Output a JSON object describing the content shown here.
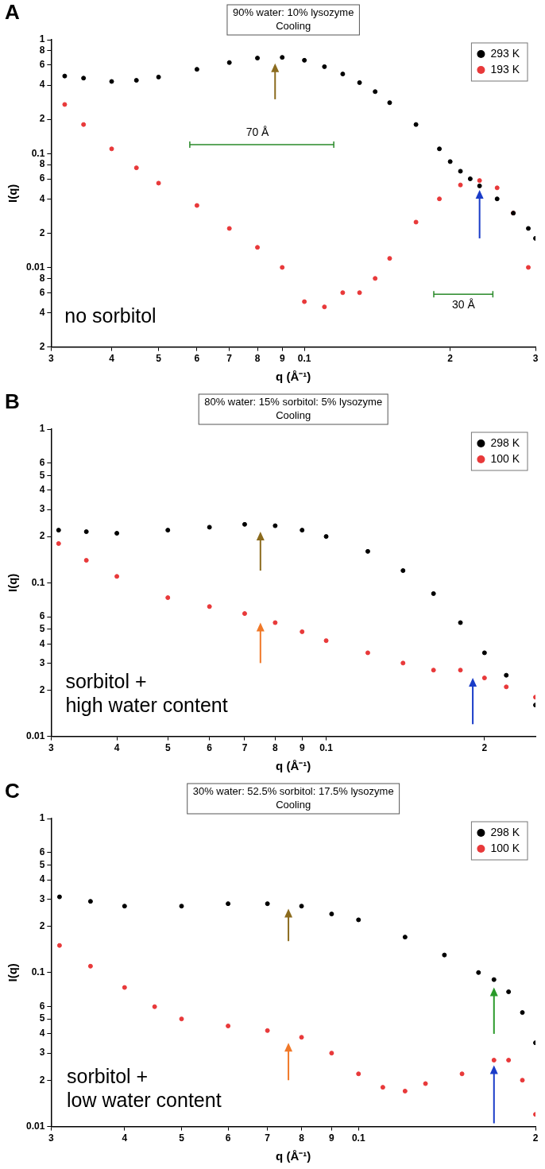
{
  "chart_data": [
    {
      "type": "scatter",
      "panel": "A",
      "title": "90% water: 10% lysozyme",
      "subtitle": "Cooling",
      "x_label": "q (Å⁻¹)",
      "y_label": "I(q)",
      "log": true,
      "grid": false,
      "legend": "upper right",
      "marker": "circle",
      "xlim": [
        0.03,
        0.3
      ],
      "ylim": [
        0.002,
        1
      ],
      "xticks": [
        {
          "value": 0.03,
          "label": "3"
        },
        {
          "value": 0.04,
          "label": "4"
        },
        {
          "value": 0.05,
          "label": "5"
        },
        {
          "value": 0.06,
          "label": "6"
        },
        {
          "value": 0.07,
          "label": "7"
        },
        {
          "value": 0.08,
          "label": "8"
        },
        {
          "value": 0.09,
          "label": "9"
        },
        0.1,
        {
          "value": 0.2,
          "label": "2"
        },
        {
          "value": 0.3,
          "label": "3"
        }
      ],
      "yticks": [
        {
          "value": 0.002,
          "label": "2"
        },
        {
          "value": 0.004,
          "label": "4"
        },
        {
          "value": 0.006,
          "label": "6"
        },
        {
          "value": 0.008,
          "label": "8"
        },
        0.01,
        {
          "value": 0.02,
          "label": "2"
        },
        {
          "value": 0.04,
          "label": "4"
        },
        {
          "value": 0.06,
          "label": "6"
        },
        {
          "value": 0.08,
          "label": "8"
        },
        0.1,
        {
          "value": 0.2,
          "label": "2"
        },
        {
          "value": 0.4,
          "label": "4"
        },
        {
          "value": 0.6,
          "label": "6"
        },
        {
          "value": 0.8,
          "label": "8"
        },
        1
      ],
      "series": [
        {
          "name": "293 K",
          "color": "#000000",
          "x": [
            0.032,
            0.035,
            0.04,
            0.045,
            0.05,
            0.06,
            0.07,
            0.08,
            0.09,
            0.1,
            0.11,
            0.12,
            0.13,
            0.14,
            0.15,
            0.17,
            0.19,
            0.2,
            0.21,
            0.22,
            0.23,
            0.25,
            0.27,
            0.29,
            0.3
          ],
          "values": [
            0.48,
            0.46,
            0.43,
            0.44,
            0.47,
            0.55,
            0.63,
            0.69,
            0.7,
            0.66,
            0.58,
            0.5,
            0.42,
            0.35,
            0.28,
            0.18,
            0.11,
            0.085,
            0.07,
            0.06,
            0.052,
            0.04,
            0.03,
            0.022,
            0.018
          ]
        },
        {
          "name": "193 K",
          "color": "#e8393a",
          "x": [
            0.032,
            0.035,
            0.04,
            0.045,
            0.05,
            0.06,
            0.07,
            0.08,
            0.09,
            0.1,
            0.11,
            0.12,
            0.13,
            0.14,
            0.15,
            0.17,
            0.19,
            0.21,
            0.23,
            0.25,
            0.27,
            0.29
          ],
          "values": [
            0.27,
            0.18,
            0.11,
            0.075,
            0.055,
            0.035,
            0.022,
            0.015,
            0.01,
            0.005,
            0.0045,
            0.006,
            0.006,
            0.008,
            0.012,
            0.025,
            0.04,
            0.053,
            0.058,
            0.05,
            0.03,
            0.01
          ]
        }
      ],
      "arrows": [
        {
          "x": 0.087,
          "from": 0.3,
          "to": 0.62,
          "color": "#8b6b1e"
        },
        {
          "x": 0.23,
          "from": 0.018,
          "to": 0.048,
          "color": "#1a3cc8"
        }
      ],
      "annotations": [
        {
          "text": [
            "no sorbitol"
          ],
          "x": 0.0315,
          "y": 0.0045
        },
        {
          "text": [
            "70 Å"
          ],
          "x": 0.08,
          "y": 0.17,
          "span": [
            0.058,
            0.115
          ],
          "span_y": 0.12
        },
        {
          "text": [
            "30 Å"
          ],
          "x": 0.213,
          "y": 0.0052,
          "span": [
            0.185,
            0.245
          ],
          "span_y": 0.0058
        }
      ]
    },
    {
      "type": "scatter",
      "panel": "B",
      "title": "80% water: 15% sorbitol: 5% lysozyme",
      "subtitle": "Cooling",
      "x_label": "q (Å⁻¹)",
      "y_label": "I(q)",
      "log": true,
      "grid": false,
      "legend": "upper right",
      "marker": "circle",
      "xlim": [
        0.03,
        0.25
      ],
      "ylim": [
        0.01,
        1
      ],
      "xticks": [
        {
          "value": 0.03,
          "label": "3"
        },
        {
          "value": 0.04,
          "label": "4"
        },
        {
          "value": 0.05,
          "label": "5"
        },
        {
          "value": 0.06,
          "label": "6"
        },
        {
          "value": 0.07,
          "label": "7"
        },
        {
          "value": 0.08,
          "label": "8"
        },
        {
          "value": 0.09,
          "label": "9"
        },
        0.1,
        {
          "value": 0.2,
          "label": "2"
        }
      ],
      "yticks": [
        0.01,
        {
          "value": 0.02,
          "label": "2"
        },
        {
          "value": 0.03,
          "label": "3"
        },
        {
          "value": 0.04,
          "label": "4"
        },
        {
          "value": 0.05,
          "label": "5"
        },
        {
          "value": 0.06,
          "label": "6"
        },
        0.1,
        {
          "value": 0.2,
          "label": "2"
        },
        {
          "value": 0.3,
          "label": "3"
        },
        {
          "value": 0.4,
          "label": "4"
        },
        {
          "value": 0.5,
          "label": "5"
        },
        {
          "value": 0.6,
          "label": "6"
        },
        1
      ],
      "series": [
        {
          "name": "298 K",
          "color": "#000000",
          "x": [
            0.031,
            0.035,
            0.04,
            0.05,
            0.06,
            0.07,
            0.08,
            0.09,
            0.1,
            0.12,
            0.14,
            0.16,
            0.18,
            0.2,
            0.22,
            0.25
          ],
          "values": [
            0.22,
            0.215,
            0.21,
            0.22,
            0.23,
            0.24,
            0.235,
            0.22,
            0.2,
            0.16,
            0.12,
            0.085,
            0.055,
            0.035,
            0.025,
            0.016
          ]
        },
        {
          "name": "100 K",
          "color": "#e8393a",
          "x": [
            0.031,
            0.035,
            0.04,
            0.05,
            0.06,
            0.07,
            0.08,
            0.09,
            0.1,
            0.12,
            0.14,
            0.16,
            0.18,
            0.2,
            0.22,
            0.25
          ],
          "values": [
            0.18,
            0.14,
            0.11,
            0.08,
            0.07,
            0.063,
            0.055,
            0.048,
            0.042,
            0.035,
            0.03,
            0.027,
            0.027,
            0.024,
            0.021,
            0.018
          ]
        }
      ],
      "arrows": [
        {
          "x": 0.075,
          "from": 0.12,
          "to": 0.215,
          "color": "#8b6b1e"
        },
        {
          "x": 0.075,
          "from": 0.03,
          "to": 0.055,
          "color": "#f07828"
        },
        {
          "x": 0.19,
          "from": 0.012,
          "to": 0.024,
          "color": "#1a3cc8"
        }
      ],
      "annotations": [
        {
          "text": [
            "sorbitol +",
            "high water content"
          ],
          "x": 0.0315,
          "y": 0.026
        }
      ]
    },
    {
      "type": "scatter",
      "panel": "C",
      "title": "30% water: 52.5% sorbitol: 17.5% lysozyme",
      "subtitle": "Cooling",
      "x_label": "q (Å⁻¹)",
      "y_label": "I(q)",
      "log": true,
      "grid": false,
      "legend": "upper right",
      "marker": "circle",
      "xlim": [
        0.03,
        0.2
      ],
      "ylim": [
        0.01,
        1
      ],
      "xticks": [
        {
          "value": 0.03,
          "label": "3"
        },
        {
          "value": 0.04,
          "label": "4"
        },
        {
          "value": 0.05,
          "label": "5"
        },
        {
          "value": 0.06,
          "label": "6"
        },
        {
          "value": 0.07,
          "label": "7"
        },
        {
          "value": 0.08,
          "label": "8"
        },
        {
          "value": 0.09,
          "label": "9"
        },
        0.1,
        {
          "value": 0.2,
          "label": "2"
        }
      ],
      "yticks": [
        0.01,
        {
          "value": 0.02,
          "label": "2"
        },
        {
          "value": 0.03,
          "label": "3"
        },
        {
          "value": 0.04,
          "label": "4"
        },
        {
          "value": 0.05,
          "label": "5"
        },
        {
          "value": 0.06,
          "label": "6"
        },
        0.1,
        {
          "value": 0.2,
          "label": "2"
        },
        {
          "value": 0.3,
          "label": "3"
        },
        {
          "value": 0.4,
          "label": "4"
        },
        {
          "value": 0.5,
          "label": "5"
        },
        {
          "value": 0.6,
          "label": "6"
        },
        1
      ],
      "series": [
        {
          "name": "298 K",
          "color": "#000000",
          "x": [
            0.031,
            0.035,
            0.04,
            0.05,
            0.06,
            0.07,
            0.08,
            0.09,
            0.1,
            0.12,
            0.14,
            0.16,
            0.17,
            0.18,
            0.19,
            0.2
          ],
          "values": [
            0.31,
            0.29,
            0.27,
            0.27,
            0.28,
            0.28,
            0.27,
            0.24,
            0.22,
            0.17,
            0.13,
            0.1,
            0.09,
            0.075,
            0.055,
            0.035
          ]
        },
        {
          "name": "100 K",
          "color": "#e8393a",
          "x": [
            0.031,
            0.035,
            0.04,
            0.045,
            0.05,
            0.06,
            0.07,
            0.08,
            0.09,
            0.1,
            0.11,
            0.12,
            0.13,
            0.15,
            0.17,
            0.18,
            0.19,
            0.2
          ],
          "values": [
            0.15,
            0.11,
            0.08,
            0.06,
            0.05,
            0.045,
            0.042,
            0.038,
            0.03,
            0.022,
            0.018,
            0.017,
            0.019,
            0.022,
            0.027,
            0.027,
            0.02,
            0.012
          ]
        }
      ],
      "arrows": [
        {
          "x": 0.076,
          "from": 0.16,
          "to": 0.26,
          "color": "#8b6b1e"
        },
        {
          "x": 0.076,
          "from": 0.02,
          "to": 0.035,
          "color": "#f07828"
        },
        {
          "x": 0.17,
          "from": 0.04,
          "to": 0.08,
          "color": "#2a9a2a"
        },
        {
          "x": 0.17,
          "from": 0.0105,
          "to": 0.025,
          "color": "#1a3cc8"
        }
      ],
      "annotations": [
        {
          "text": [
            "sorbitol +",
            "low water content"
          ],
          "x": 0.0315,
          "y": 0.024
        }
      ]
    }
  ]
}
